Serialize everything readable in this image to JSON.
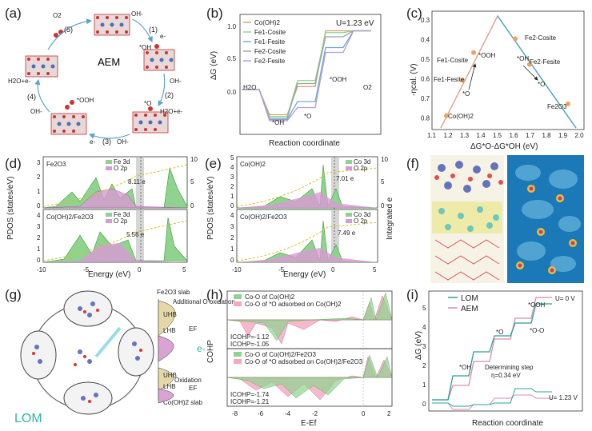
{
  "figure": {
    "labels": [
      "(a)",
      "(b)",
      "(c)",
      "(d)",
      "(e)",
      "(f)",
      "(g)",
      "(h)",
      "(i)"
    ]
  },
  "panel_a": {
    "title": "AEM",
    "steps": [
      "(1)",
      "(2)",
      "(3)",
      "(4)",
      "(5)"
    ],
    "species": {
      "o2": "O2",
      "oh_top": "OH-",
      "oh_ads": "*OH",
      "e1": "e-",
      "o_ads": "*O",
      "oh_right": "OH-",
      "h2o_right": "H2O+e-",
      "e_bottom": "e-",
      "oh_bottom": "OH-",
      "ooh_ads": "*OOH",
      "oh_left": "OH-",
      "h2o_left": "H2O+e-"
    }
  },
  "panel_b": {
    "potential": "U=1.23 eV",
    "ylabel": "ΔG (eV)",
    "xlabel": "Reaction coordinate",
    "legend": [
      "Co(OH)2",
      "Fe1-Cosite",
      "Fe1-Fesite",
      "Fe2-Cosite",
      "Fe2-Fesite"
    ],
    "colors": [
      "#c9a86a",
      "#8fcf8f",
      "#6fa8d6",
      "#a0a0a0",
      "#b59bd6"
    ],
    "steps": [
      "H2O",
      "*OH",
      "*O",
      "*OOH",
      "O2"
    ],
    "yticks": [
      "0.0",
      "0.5",
      "1.0"
    ]
  },
  "panel_c": {
    "ylabel": "-ηcal. (V)",
    "xlabel": "ΔG*O-ΔG*OH (eV)",
    "xticks": [
      "1.1",
      "1.2",
      "1.3",
      "1.4",
      "1.5",
      "1.6",
      "1.7",
      "1.8",
      "1.9",
      "2.0"
    ],
    "yticks": [
      "0.3",
      "0.4",
      "0.5",
      "0.6",
      "0.7",
      "0.8"
    ],
    "annotations": [
      "Fe2-Cosite",
      "Fe1-Cosite",
      "Fe1-Fesite",
      "Co(OH)2",
      "Fe2-Fesite",
      "Fe2O3",
      "*OOH",
      "*O",
      "*OH",
      "*O"
    ],
    "points": [
      {
        "label": "Co(OH)2",
        "x": 1.19,
        "y": 0.78
      },
      {
        "label": "Fe1-Fesite",
        "x": 1.29,
        "y": 0.6
      },
      {
        "label": "Fe1-Cosite",
        "x": 1.36,
        "y": 0.46
      },
      {
        "label": "Fe2-Cosite",
        "x": 1.62,
        "y": 0.39
      },
      {
        "label": "Fe2-Fesite",
        "x": 1.71,
        "y": 0.52
      },
      {
        "label": "Fe2O3",
        "x": 1.95,
        "y": 0.72
      }
    ]
  },
  "panel_d": {
    "top_title": "Fe2O3",
    "bottom_title": "Co(OH)2/Fe2O3",
    "legend_top": [
      "Fe 3d",
      "O 2p"
    ],
    "legend_bottom": [
      "Fe 3d",
      "O 2p"
    ],
    "gap_top": "8.11 e",
    "gap_bottom": "5.56 e",
    "ylabel": "PDOS (states/eV)",
    "xlabel": "Energy (eV)",
    "xticks": [
      "-10",
      "-5",
      "0",
      "5"
    ],
    "yticks_top": [
      "0",
      "1",
      "2",
      "3"
    ],
    "yticks_bottom": [
      "0",
      "1",
      "2",
      "3",
      "4"
    ],
    "y2ticks": [
      "0",
      "5",
      "10"
    ]
  },
  "panel_e": {
    "top_title": "Co(OH)2",
    "bottom_title": "Co(OH)2/Fe2O3",
    "legend_top": [
      "Co 3d",
      "O 2p"
    ],
    "legend_bottom": [
      "Co 3d",
      "O 2p"
    ],
    "gap_top": "7.01 e",
    "gap_bottom": "7.49 e",
    "ylabel": "PDOS (states/eV)",
    "y2label": "Integrated e",
    "xlabel": "Energy (eV)",
    "xticks": [
      "-10",
      "-5",
      "0",
      "5"
    ],
    "yticks_top": [
      "0",
      "1",
      "2",
      "3",
      "4",
      "5"
    ],
    "yticks_bottom": [
      "0",
      "1",
      "2",
      "3",
      "4"
    ],
    "y2ticks": [
      "0",
      "5",
      "10"
    ]
  },
  "panel_g": {
    "title": "LOM",
    "top_slab": "Fe2O3 slab",
    "bottom_slab": "Co(OH)2 slab",
    "top_note": "Additional O oxidation",
    "bottom_note": "Oxidation",
    "levels": [
      "UHB",
      "LHB",
      "EF",
      "UHB",
      "LHB",
      "EF"
    ],
    "electron": "e-"
  },
  "panel_h": {
    "ylabel": "COHP",
    "xlabel": "E-Ef",
    "xticks": [
      "-8",
      "-6",
      "-4",
      "-2",
      "0",
      "2"
    ],
    "legend_top": [
      "Co-O of Co(OH)2",
      "Co-O of *O adsorbed on Co(OH)2"
    ],
    "legend_bottom": [
      "Co-O of Co(OH)2/Fe2O3",
      "Co-O of *O adsorbed on Co(OH)2/Fe2O3"
    ],
    "icohp_top": [
      "ICOHP=-1.12",
      "ICOHP=-1.05"
    ],
    "icohp_bottom": [
      "ICOHP=-1.74",
      "ICOHP=-1.21"
    ]
  },
  "panel_i": {
    "legend": [
      "LOM",
      "AEM"
    ],
    "colors": [
      "#2aa198",
      "#d98ca8"
    ],
    "u0": "U= 0 V",
    "u123": "U= 1.23 V",
    "labels": [
      "*OOH",
      "*O-O",
      "*O",
      "*OH"
    ],
    "determining": "Determining step",
    "eta": "η=0.34 eV",
    "ylabel": "ΔG (eV)",
    "xlabel": "Reaction coordinate",
    "yticks": [
      "0",
      "1",
      "2",
      "3",
      "4",
      "5"
    ]
  }
}
